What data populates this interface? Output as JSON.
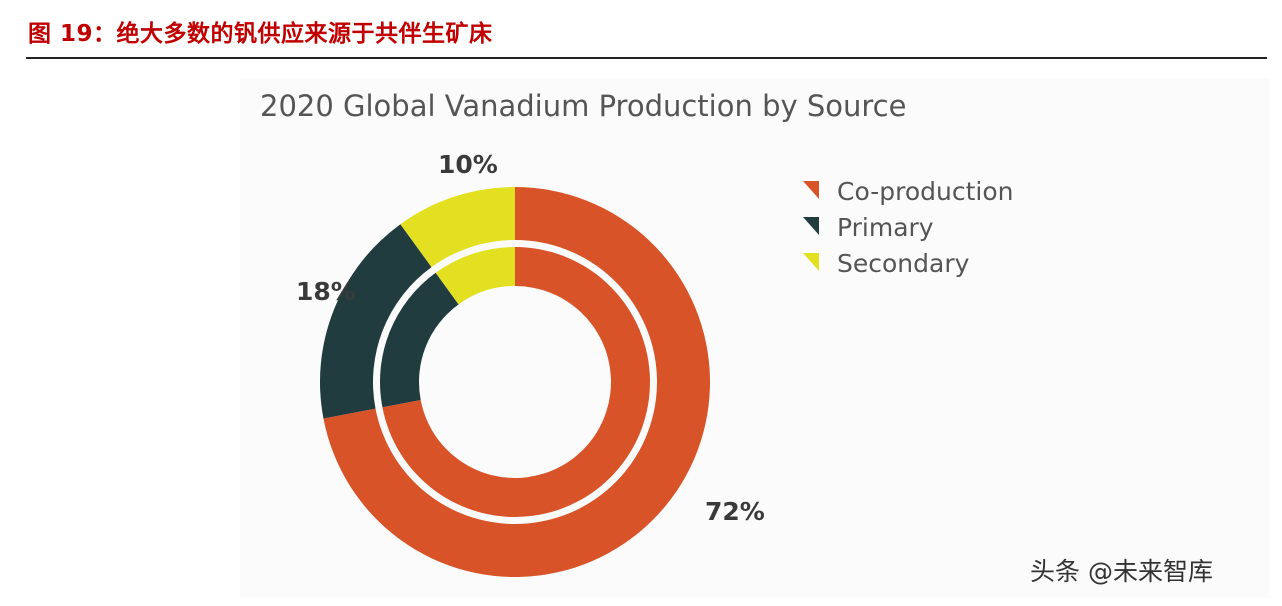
{
  "figure": {
    "header": "图 19：绝大多数的钒供应来源于共伴生矿床"
  },
  "chart_data": {
    "type": "pie",
    "title": "2020 Global Vanadium Production by Source",
    "series": [
      {
        "name": "Co-production",
        "value": 72,
        "label": "72%",
        "color": "#d85428"
      },
      {
        "name": "Primary",
        "value": 18,
        "label": "18%",
        "color": "#213c3e"
      },
      {
        "name": "Secondary",
        "value": 10,
        "label": "10%",
        "color": "#e3e022"
      }
    ],
    "legend": {
      "position": "top-right",
      "items": [
        "Co-production",
        "Primary",
        "Secondary"
      ]
    }
  },
  "watermark": "头条 @未来智库"
}
